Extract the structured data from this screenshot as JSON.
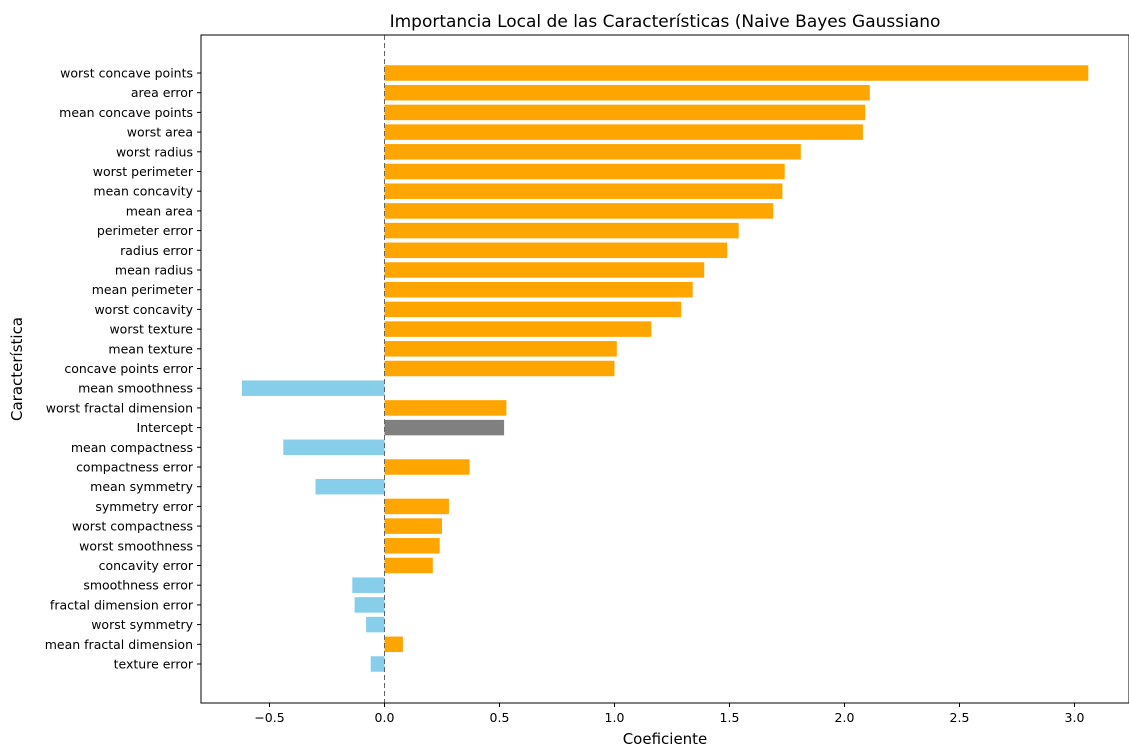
{
  "chart_data": {
    "type": "bar",
    "orientation": "horizontal",
    "title": "Importancia Local de las Características (Naive Bayes Gaussiano",
    "xlabel": "Coeficiente",
    "ylabel": "Característica",
    "xlim": [
      -0.8,
      3.2
    ],
    "xticks": [
      -0.5,
      0.0,
      0.5,
      1.0,
      1.5,
      2.0,
      2.5,
      3.0
    ],
    "xtick_labels": [
      "−0.5",
      "0.0",
      "0.5",
      "1.0",
      "1.5",
      "2.0",
      "2.5",
      "3.0"
    ],
    "grid": false,
    "zero_line": "dashed",
    "colors": {
      "positive": "#FFA500",
      "negative": "#87CEEB",
      "intercept": "#808080"
    },
    "categories": [
      "worst concave points",
      "area error",
      "mean concave points",
      "worst area",
      "worst radius",
      "worst perimeter",
      "mean concavity",
      "mean area",
      "perimeter error",
      "radius error",
      "mean radius",
      "mean perimeter",
      "worst concavity",
      "worst texture",
      "mean texture",
      "concave points error",
      "mean smoothness",
      "worst fractal dimension",
      "Intercept",
      "mean compactness",
      "compactness error",
      "mean symmetry",
      "symmetry error",
      "worst compactness",
      "worst smoothness",
      "concavity error",
      "smoothness error",
      "fractal dimension error",
      "worst symmetry",
      "mean fractal dimension",
      "texture error"
    ],
    "values": [
      3.06,
      2.11,
      2.09,
      2.08,
      1.81,
      1.74,
      1.73,
      1.69,
      1.54,
      1.49,
      1.39,
      1.34,
      1.29,
      1.16,
      1.01,
      1.0,
      -0.62,
      0.53,
      0.52,
      -0.44,
      0.37,
      -0.3,
      0.28,
      0.25,
      0.24,
      0.21,
      -0.14,
      -0.13,
      -0.08,
      0.08,
      -0.06
    ]
  }
}
